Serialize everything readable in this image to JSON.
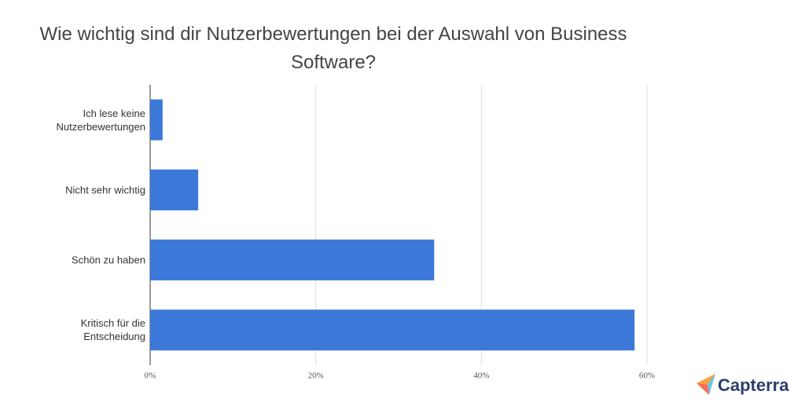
{
  "chart_data": {
    "type": "barh",
    "title": "Wie wichtig sind dir Nutzerbewertungen bei der Auswahl von Business Software?",
    "categories": [
      "Ich lese keine Nutzerbewertungen",
      "Nicht sehr wichtig",
      "Schön zu haben",
      "Kritisch für die Entscheidung"
    ],
    "values": [
      1.5,
      5.8,
      34.3,
      58.5
    ],
    "color": "#3b78d8",
    "xlim": [
      0,
      60
    ],
    "xticks": [
      {
        "value": 0,
        "label": "0%"
      },
      {
        "value": 20,
        "label": "20%"
      },
      {
        "value": 40,
        "label": "40%"
      },
      {
        "value": 60,
        "label": "60%"
      }
    ],
    "grid": true
  },
  "brand": "Capterra"
}
